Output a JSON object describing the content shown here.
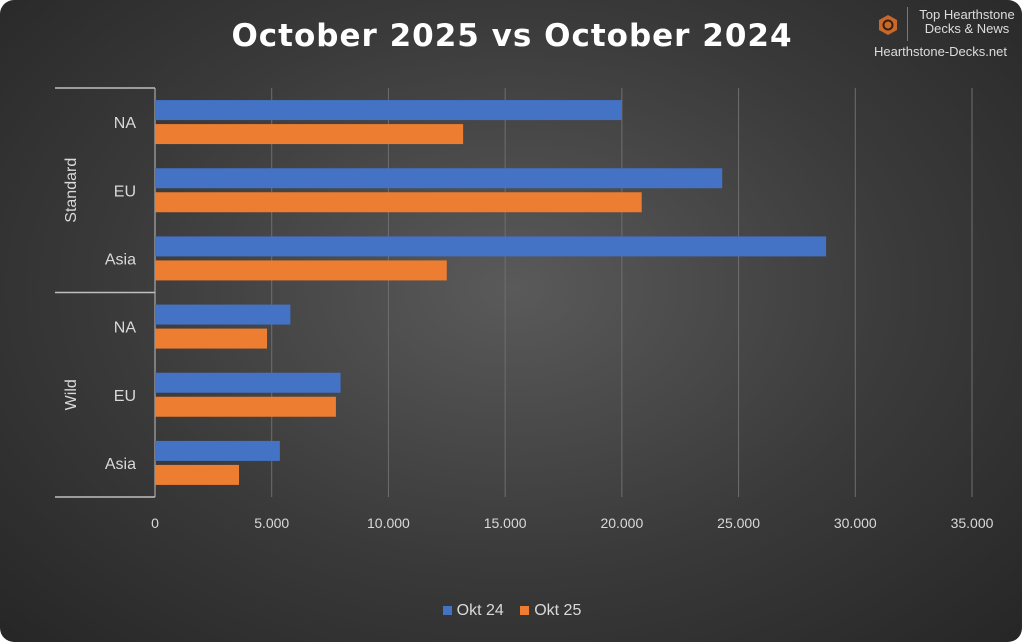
{
  "chart_data": {
    "type": "bar",
    "orientation": "horizontal",
    "title": "October 2025 vs October 2024",
    "groups": [
      {
        "name": "Standard",
        "categories": [
          "NA",
          "EU",
          "Asia"
        ]
      },
      {
        "name": "Wild",
        "categories": [
          "NA",
          "EU",
          "Asia"
        ]
      }
    ],
    "series": [
      {
        "name": "Okt 24",
        "color": "#4472c4",
        "values": [
          20000,
          24300,
          28750,
          5800,
          7950,
          5350
        ]
      },
      {
        "name": "Okt 25",
        "color": "#ed7d31",
        "values": [
          13200,
          20850,
          12500,
          4800,
          7750,
          3600
        ]
      }
    ],
    "xlim": [
      0,
      35000
    ],
    "xticks": [
      0,
      5000,
      10000,
      15000,
      20000,
      25000,
      30000,
      35000
    ],
    "xtick_labels": [
      "0",
      "5.000",
      "10.000",
      "15.000",
      "20.000",
      "25.000",
      "30.000",
      "35.000"
    ],
    "grid": true,
    "legend_position": "bottom"
  },
  "logo": {
    "line1": "Top Hearthstone",
    "line2": "Decks & News",
    "site": "Hearthstone-Decks.net"
  }
}
